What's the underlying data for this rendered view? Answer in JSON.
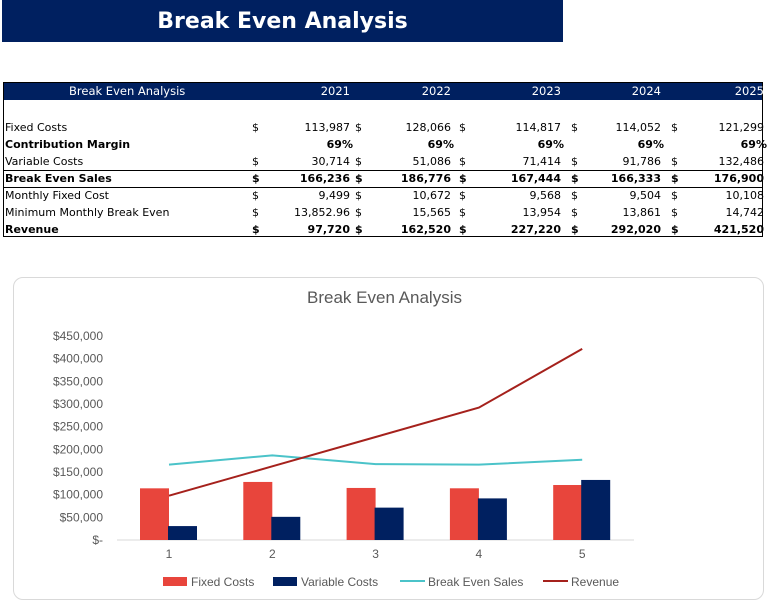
{
  "banner": {
    "title": "Break Even Analysis"
  },
  "table": {
    "header_label": "Break Even Analysis",
    "years": [
      "2021",
      "2022",
      "2023",
      "2024",
      "2025"
    ],
    "currency": "$",
    "rows": [
      {
        "label": "Fixed Costs",
        "bold": false,
        "currency": true,
        "values": [
          "113,987",
          "128,066",
          "114,817",
          "114,052",
          "121,299"
        ]
      },
      {
        "label": "Contribution Margin",
        "bold": true,
        "currency": false,
        "values": [
          "69%",
          "69%",
          "69%",
          "69%",
          "69%"
        ]
      },
      {
        "label": "Variable Costs",
        "bold": false,
        "currency": true,
        "values": [
          "30,714",
          "51,086",
          "71,414",
          "91,786",
          "132,486"
        ]
      },
      {
        "label": "Break Even Sales",
        "bold": true,
        "currency": true,
        "values": [
          "166,236",
          "186,776",
          "167,444",
          "166,333",
          "176,900"
        ]
      },
      {
        "label": "Monthly Fixed Cost",
        "bold": false,
        "currency": true,
        "values": [
          "9,499",
          "10,672",
          "9,568",
          "9,504",
          "10,108"
        ]
      },
      {
        "label": "Minimum Monthly Break Even",
        "bold": false,
        "currency": true,
        "values": [
          "13,852.96",
          "15,565",
          "13,954",
          "13,861",
          "14,742"
        ]
      },
      {
        "label": "Revenue",
        "bold": true,
        "currency": true,
        "values": [
          "97,720",
          "162,520",
          "227,220",
          "292,020",
          "421,520"
        ]
      }
    ]
  },
  "chart_data": {
    "type": "bar+line",
    "title": "Break Even Analysis",
    "categories": [
      "1",
      "2",
      "3",
      "4",
      "5"
    ],
    "ylim": [
      0,
      450000
    ],
    "y_ticks": [
      "$-",
      "$50,000",
      "$100,000",
      "$150,000",
      "$200,000",
      "$250,000",
      "$300,000",
      "$350,000",
      "$400,000",
      "$450,000"
    ],
    "legend_position": "bottom",
    "grid": false,
    "series": [
      {
        "name": "Fixed Costs",
        "kind": "bar",
        "color": "#e8453c",
        "values": [
          113987,
          128066,
          114817,
          114052,
          121299
        ]
      },
      {
        "name": "Variable Costs",
        "kind": "bar",
        "color": "#002060",
        "values": [
          30714,
          51086,
          71414,
          91786,
          132486
        ]
      },
      {
        "name": "Break Even Sales",
        "kind": "line",
        "color": "#4bc3c9",
        "values": [
          166236,
          186776,
          167444,
          166333,
          176900
        ]
      },
      {
        "name": "Revenue",
        "kind": "line",
        "color": "#a5211c",
        "values": [
          97720,
          162520,
          227220,
          292020,
          421520
        ]
      }
    ]
  }
}
